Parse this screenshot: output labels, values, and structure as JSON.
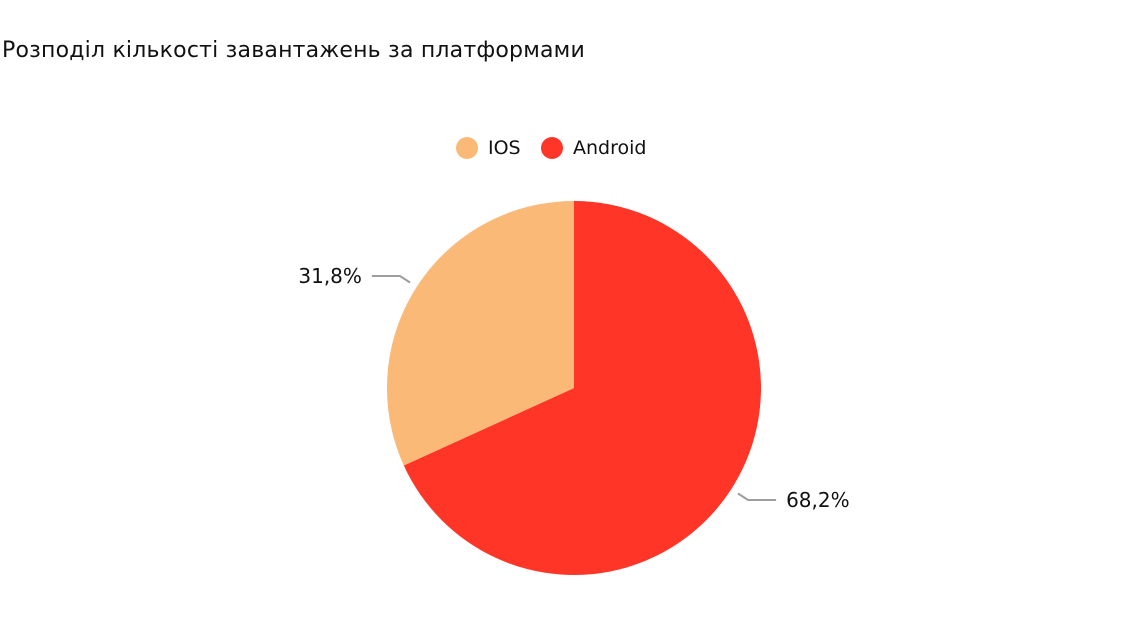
{
  "chart_data": {
    "type": "pie",
    "title": "Розподіл кількості завантажень за платформами",
    "categories": [
      "IOS",
      "Android"
    ],
    "values": [
      31.8,
      68.2
    ],
    "data_labels": [
      "31,8%",
      "68,2%"
    ],
    "colors": [
      "#FBB977",
      "#FF3527"
    ],
    "legend": {
      "placement": "top-center",
      "entries": [
        "IOS",
        "Android"
      ]
    },
    "label_line_color": "#9E9E9E"
  }
}
